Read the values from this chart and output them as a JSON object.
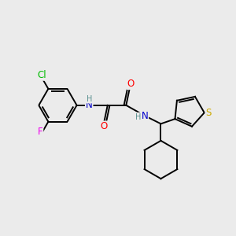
{
  "background_color": "#ebebeb",
  "bond_color": "#000000",
  "bond_width": 1.4,
  "atom_colors": {
    "C": "#000000",
    "N": "#0000cc",
    "O": "#ff0000",
    "S": "#ccaa00",
    "Cl": "#00bb00",
    "F": "#ee00ee",
    "H": "#5a9090"
  },
  "font_size": 8.5,
  "fig_width": 3.0,
  "fig_height": 3.0,
  "dpi": 100
}
